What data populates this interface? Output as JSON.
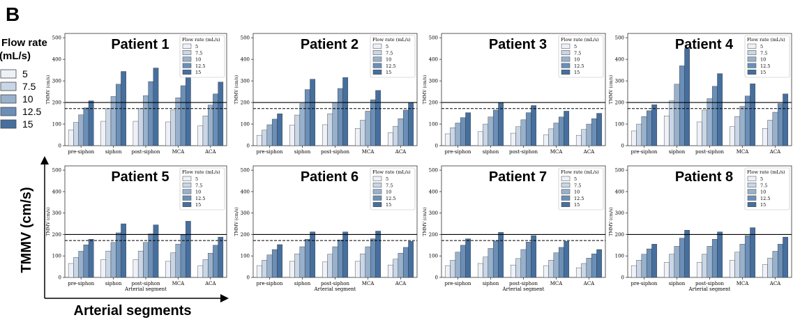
{
  "figure": {
    "panel_letter": "B",
    "legend_title": [
      "Flow rate",
      "(mL/s)"
    ],
    "legend_labels": [
      "5",
      "7.5",
      "10",
      "12.5",
      "15"
    ],
    "y_title": "TMMV (cm/s)",
    "x_title": "Arterial segments"
  },
  "colors": {
    "series": [
      "#eef2f8",
      "#c9d6e6",
      "#98b1cc",
      "#6b8fb7",
      "#466f9e"
    ],
    "edge": "#333333",
    "solid_line": "#000000",
    "dashed_line": "#000000"
  },
  "chart_data": [
    {
      "type": "bar",
      "title": "Patient 1",
      "categories": [
        "pre-siphon",
        "siphon",
        "post-siphon",
        "MCA",
        "ACA"
      ],
      "ylabel": "TMMV (cm/s)",
      "xlabel": "",
      "yticks": [
        0,
        100,
        200,
        300,
        400,
        500
      ],
      "ylim": [
        0,
        520
      ],
      "reference_lines": [
        {
          "style": "solid",
          "value": 200
        },
        {
          "style": "dashed",
          "value": 172
        }
      ],
      "legend": {
        "title": "Flow rate (mL/s)",
        "position": "top-right"
      },
      "series": [
        {
          "name": "5",
          "values": [
            73,
            113,
            113,
            110,
            92
          ]
        },
        {
          "name": "7.5",
          "values": [
            108,
            172,
            172,
            165,
            138
          ]
        },
        {
          "name": "10",
          "values": [
            143,
            228,
            232,
            222,
            188
          ]
        },
        {
          "name": "12.5",
          "values": [
            175,
            285,
            297,
            278,
            240
          ]
        },
        {
          "name": "15",
          "values": [
            208,
            344,
            360,
            338,
            295
          ]
        }
      ]
    },
    {
      "type": "bar",
      "title": "Patient 2",
      "categories": [
        "pre-siphon",
        "siphon",
        "post-siphon",
        "MCA",
        "ACA"
      ],
      "ylabel": "TMMV (cm/s)",
      "xlabel": "",
      "yticks": [
        0,
        100,
        200,
        300,
        400,
        500
      ],
      "ylim": [
        0,
        520
      ],
      "reference_lines": [
        {
          "style": "solid",
          "value": 200
        },
        {
          "style": "dashed",
          "value": 172
        }
      ],
      "legend": {
        "title": "Flow rate (mL/s)",
        "position": "top-right"
      },
      "series": [
        {
          "name": "5",
          "values": [
            48,
            95,
            97,
            80,
            60
          ]
        },
        {
          "name": "7.5",
          "values": [
            72,
            142,
            148,
            118,
            90
          ]
        },
        {
          "name": "10",
          "values": [
            97,
            195,
            200,
            160,
            125
          ]
        },
        {
          "name": "12.5",
          "values": [
            123,
            260,
            265,
            213,
            165
          ]
        },
        {
          "name": "15",
          "values": [
            148,
            308,
            316,
            256,
            200
          ]
        }
      ]
    },
    {
      "type": "bar",
      "title": "Patient 3",
      "categories": [
        "pre-siphon",
        "siphon",
        "post-siphon",
        "MCA",
        "ACA"
      ],
      "ylabel": "TMMV (cm/s)",
      "xlabel": "",
      "yticks": [
        0,
        100,
        200,
        300,
        400,
        500
      ],
      "ylim": [
        0,
        520
      ],
      "reference_lines": [
        {
          "style": "solid",
          "value": 200
        },
        {
          "style": "dashed",
          "value": 172
        }
      ],
      "legend": {
        "title": "Flow rate (mL/s)",
        "position": "top-right"
      },
      "series": [
        {
          "name": "5",
          "values": [
            55,
            65,
            58,
            50,
            48
          ]
        },
        {
          "name": "7.5",
          "values": [
            83,
            100,
            88,
            78,
            75
          ]
        },
        {
          "name": "10",
          "values": [
            105,
            133,
            120,
            105,
            100
          ]
        },
        {
          "name": "12.5",
          "values": [
            130,
            165,
            153,
            133,
            125
          ]
        },
        {
          "name": "15",
          "values": [
            153,
            198,
            186,
            160,
            150
          ]
        }
      ]
    },
    {
      "type": "bar",
      "title": "Patient 4",
      "categories": [
        "pre-siphon",
        "siphon",
        "post-siphon",
        "MCA",
        "ACA"
      ],
      "ylabel": "TMMV (cm/s)",
      "xlabel": "",
      "yticks": [
        0,
        100,
        200,
        300,
        400,
        500
      ],
      "ylim": [
        0,
        520
      ],
      "reference_lines": [
        {
          "style": "solid",
          "value": 200
        },
        {
          "style": "dashed",
          "value": 172
        }
      ],
      "legend": {
        "title": "Flow rate (mL/s)",
        "position": "top-right"
      },
      "series": [
        {
          "name": "5",
          "values": [
            68,
            138,
            110,
            88,
            80
          ]
        },
        {
          "name": "7.5",
          "values": [
            100,
            208,
            165,
            135,
            118
          ]
        },
        {
          "name": "10",
          "values": [
            135,
            285,
            218,
            182,
            155
          ]
        },
        {
          "name": "12.5",
          "values": [
            162,
            370,
            275,
            230,
            195
          ]
        },
        {
          "name": "15",
          "values": [
            190,
            450,
            334,
            287,
            240
          ]
        }
      ]
    },
    {
      "type": "bar",
      "title": "Patient 5",
      "categories": [
        "pre-siphon",
        "siphon",
        "post-siphon",
        "MCA",
        "ACA"
      ],
      "ylabel": "TMMV (cm/s)",
      "xlabel": "Arterial segment",
      "yticks": [
        0,
        100,
        200,
        300,
        400,
        500
      ],
      "ylim": [
        0,
        520
      ],
      "reference_lines": [
        {
          "style": "solid",
          "value": 200
        },
        {
          "style": "dashed",
          "value": 172
        }
      ],
      "legend": {
        "title": "Flow rate (mL/s)",
        "position": "top-right"
      },
      "series": [
        {
          "name": "5",
          "values": [
            65,
            83,
            83,
            75,
            55
          ]
        },
        {
          "name": "7.5",
          "values": [
            93,
            123,
            123,
            115,
            83
          ]
        },
        {
          "name": "10",
          "values": [
            122,
            163,
            163,
            155,
            113
          ]
        },
        {
          "name": "12.5",
          "values": [
            152,
            208,
            203,
            198,
            150
          ]
        },
        {
          "name": "15",
          "values": [
            178,
            250,
            245,
            262,
            188
          ]
        }
      ]
    },
    {
      "type": "bar",
      "title": "Patient 6",
      "categories": [
        "pre-siphon",
        "siphon",
        "post-siphon",
        "MCA",
        "ACA"
      ],
      "ylabel": "TMMV (cm/s)",
      "xlabel": "Arterial segment",
      "yticks": [
        0,
        100,
        200,
        300,
        400,
        500
      ],
      "ylim": [
        0,
        520
      ],
      "reference_lines": [
        {
          "style": "solid",
          "value": 200
        },
        {
          "style": "dashed",
          "value": 172
        }
      ],
      "legend": {
        "title": "Flow rate (mL/s)",
        "position": "top-right"
      },
      "series": [
        {
          "name": "5",
          "values": [
            55,
            75,
            72,
            75,
            58
          ]
        },
        {
          "name": "7.5",
          "values": [
            80,
            110,
            108,
            110,
            85
          ]
        },
        {
          "name": "10",
          "values": [
            105,
            143,
            143,
            143,
            113
          ]
        },
        {
          "name": "12.5",
          "values": [
            130,
            178,
            175,
            180,
            140
          ]
        },
        {
          "name": "15",
          "values": [
            153,
            212,
            212,
            216,
            168
          ]
        }
      ]
    },
    {
      "type": "bar",
      "title": "Patient 7",
      "categories": [
        "pre-siphon",
        "siphon",
        "post-siphon",
        "MCA",
        "ACA"
      ],
      "ylabel": "TMMV (cm/s)",
      "xlabel": "Arterial segment",
      "yticks": [
        0,
        100,
        200,
        300,
        400,
        500
      ],
      "ylim": [
        0,
        520
      ],
      "reference_lines": [
        {
          "style": "solid",
          "value": 200
        },
        {
          "style": "dashed",
          "value": 172
        }
      ],
      "legend": {
        "title": "Flow rate (mL/s)",
        "position": "top-right"
      },
      "series": [
        {
          "name": "5",
          "values": [
            55,
            65,
            58,
            55,
            45
          ]
        },
        {
          "name": "7.5",
          "values": [
            80,
            95,
            88,
            80,
            65
          ]
        },
        {
          "name": "10",
          "values": [
            118,
            135,
            130,
            115,
            90
          ]
        },
        {
          "name": "12.5",
          "values": [
            150,
            170,
            165,
            140,
            110
          ]
        },
        {
          "name": "15",
          "values": [
            180,
            210,
            195,
            168,
            130
          ]
        }
      ]
    },
    {
      "type": "bar",
      "title": "Patient 8",
      "categories": [
        "pre-siphon",
        "siphon",
        "post-siphon",
        "MCA",
        "ACA"
      ],
      "ylabel": "TMMV (cm/s)",
      "xlabel": "Arterial segment",
      "yticks": [
        0,
        100,
        200,
        300,
        400,
        500
      ],
      "ylim": [
        0,
        520
      ],
      "reference_lines": [
        {
          "style": "solid",
          "value": 200
        }
      ],
      "legend": {
        "title": "Flow rate (mL/s)",
        "position": "top-right"
      },
      "series": [
        {
          "name": "5",
          "values": [
            55,
            70,
            70,
            80,
            60
          ]
        },
        {
          "name": "7.5",
          "values": [
            80,
            108,
            108,
            118,
            90
          ]
        },
        {
          "name": "10",
          "values": [
            108,
            145,
            145,
            155,
            122
          ]
        },
        {
          "name": "12.5",
          "values": [
            133,
            183,
            178,
            195,
            155
          ]
        },
        {
          "name": "15",
          "values": [
            155,
            220,
            212,
            232,
            188
          ]
        }
      ]
    }
  ]
}
